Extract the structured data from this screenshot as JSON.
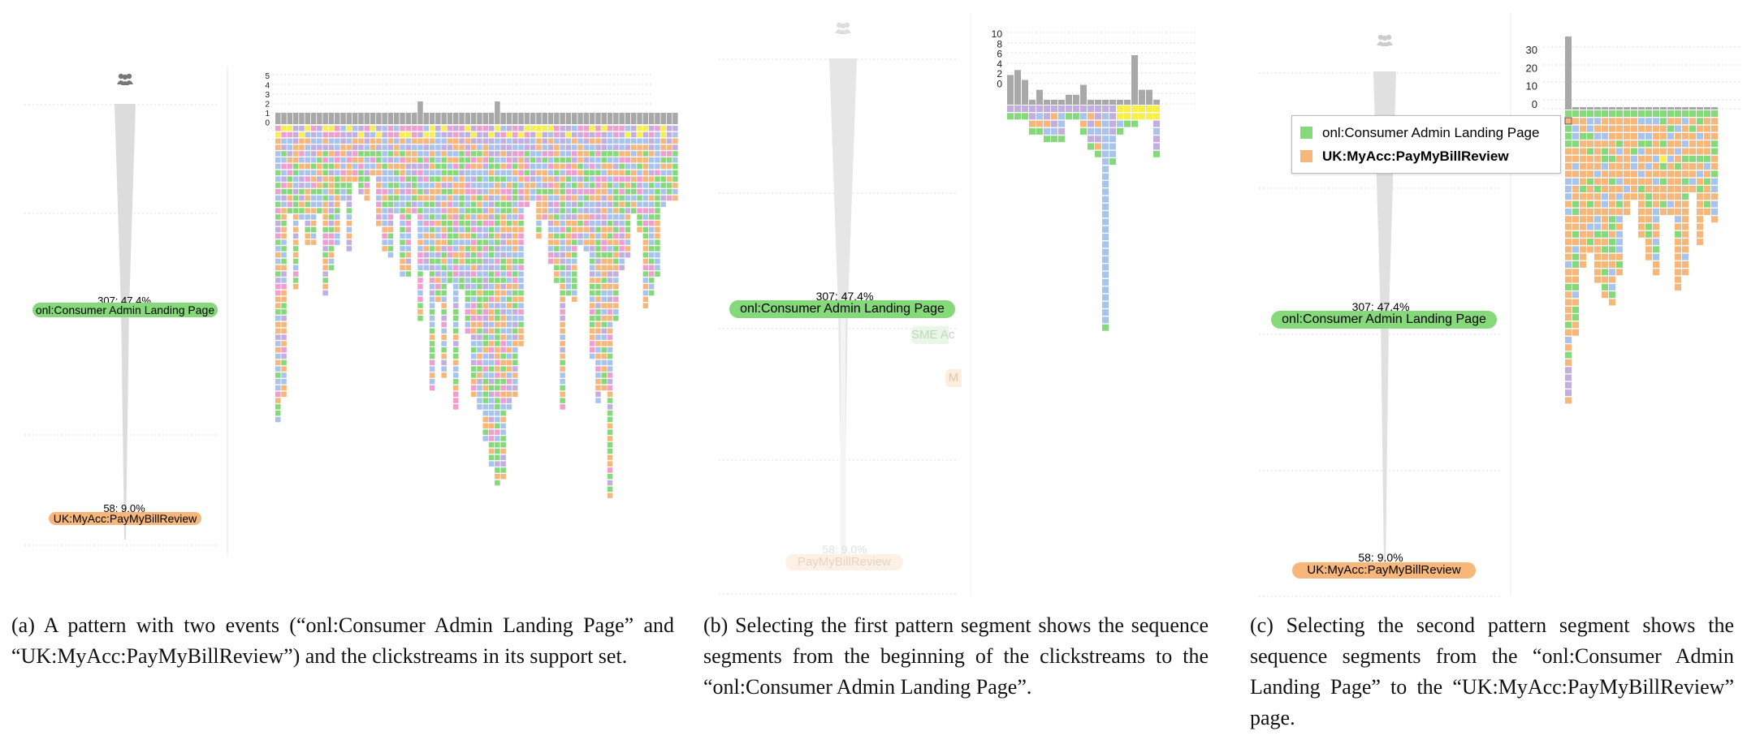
{
  "colors": {
    "green": "#86d97a",
    "orange": "#f7b77a",
    "blue": "#a9c4ec",
    "purple": "#c3aee0",
    "pink": "#ef9fcf",
    "yellow": "#f7ef4a",
    "red": "#f08080",
    "gray": "#a8a8a8",
    "funnel": "#dcdcdc",
    "grid": "#dddddd"
  },
  "icon": "users-icon",
  "panel_a": {
    "event1": {
      "stat": "307: 47.4%",
      "label": "onl:Consumer Admin Landing Page"
    },
    "event2": {
      "stat": "58: 9.0%",
      "label": "UK:MyAcc:PayMyBillReview"
    },
    "chart_ticks": [
      "5",
      "4",
      "3",
      "2",
      "1",
      "0"
    ],
    "caption": "(a) A pattern with two events (“onl:Consumer Admin Landing Page” and “UK:MyAcc:PayMyBillReview”) and the clickstreams in its support set."
  },
  "panel_b": {
    "event1": {
      "stat": "307: 47.4%",
      "label": "onl:Consumer Admin Landing Page"
    },
    "event2": {
      "stat": "58: 9.0%",
      "label": "PayMyBillReview"
    },
    "ghost1": "SME Ac",
    "ghost2": "M",
    "chart_ticks": [
      "10",
      "8",
      "6",
      "4",
      "2",
      "0"
    ],
    "caption": "(b) Selecting the first pattern segment shows the sequence segments from the beginning of the clickstreams to the “onl:Consumer Admin Landing Page”."
  },
  "panel_c": {
    "event1": {
      "stat": "307: 47.4%",
      "label": "onl:Consumer Admin Landing Page"
    },
    "event2": {
      "stat": "58: 9.0%",
      "label": "UK:MyAcc:PayMyBillReview"
    },
    "legend": [
      {
        "label": "onl:Consumer Admin Landing Page",
        "color": "#86d97a",
        "bold": false
      },
      {
        "label": "UK:MyAcc:PayMyBillReview",
        "color": "#f7b77a",
        "bold": true
      }
    ],
    "chart_ticks": [
      "30",
      "20",
      "10",
      "0"
    ],
    "caption": "(c) Selecting the second pattern segment shows the sequence segments from the “onl:Consumer Admin Landing Page” to the “UK:MyAcc:PayMyBillReview” page."
  }
}
